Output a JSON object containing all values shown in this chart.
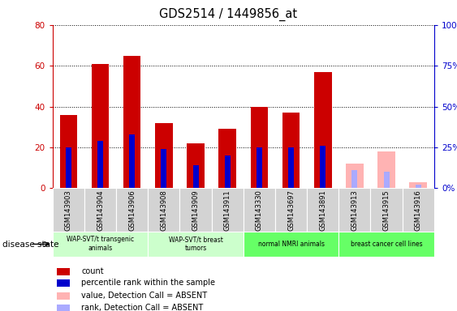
{
  "title": "GDS2514 / 1449856_at",
  "samples": [
    "GSM143903",
    "GSM143904",
    "GSM143906",
    "GSM143908",
    "GSM143909",
    "GSM143911",
    "GSM143330",
    "GSM143697",
    "GSM143891",
    "GSM143913",
    "GSM143915",
    "GSM143916"
  ],
  "count_values": [
    36,
    61,
    65,
    32,
    22,
    29,
    40,
    37,
    57,
    0,
    0,
    0
  ],
  "rank_values_pct": [
    25,
    29,
    33,
    24,
    14,
    20,
    25,
    25,
    26,
    0,
    0,
    0
  ],
  "absent_count_values": [
    0,
    0,
    0,
    0,
    0,
    0,
    0,
    0,
    0,
    12,
    18,
    3
  ],
  "absent_rank_values_pct": [
    0,
    0,
    0,
    0,
    0,
    0,
    0,
    0,
    0,
    11,
    10,
    2
  ],
  "count_color": "#cc0000",
  "rank_color": "#0000cc",
  "absent_count_color": "#ffb3b3",
  "absent_rank_color": "#aaaaff",
  "groups": [
    {
      "label": "WAP-SVT/t transgenic\nanimals",
      "start": 0,
      "end": 3,
      "color": "#ccffcc"
    },
    {
      "label": "WAP-SVT/t breast\ntumors",
      "start": 3,
      "end": 6,
      "color": "#ccffcc"
    },
    {
      "label": "normal NMRI animals",
      "start": 6,
      "end": 9,
      "color": "#66ff66"
    },
    {
      "label": "breast cancer cell lines",
      "start": 9,
      "end": 12,
      "color": "#66ff66"
    }
  ],
  "ylim_left": [
    0,
    80
  ],
  "ylim_right": [
    0,
    100
  ],
  "yticks_left": [
    0,
    20,
    40,
    60,
    80
  ],
  "yticks_right": [
    0,
    25,
    50,
    75,
    100
  ],
  "ytick_labels_left": [
    "0",
    "20",
    "40",
    "60",
    "80"
  ],
  "ytick_labels_right": [
    "0%",
    "25%",
    "50%",
    "75%",
    "100%"
  ],
  "left_axis_color": "#cc0000",
  "right_axis_color": "#0000cc",
  "bar_width": 0.55,
  "rank_bar_width": 0.18,
  "legend_items": [
    {
      "label": "count",
      "color": "#cc0000"
    },
    {
      "label": "percentile rank within the sample",
      "color": "#0000cc"
    },
    {
      "label": "value, Detection Call = ABSENT",
      "color": "#ffb3b3"
    },
    {
      "label": "rank, Detection Call = ABSENT",
      "color": "#aaaaff"
    }
  ],
  "bg_color": "#ffffff",
  "plot_bg_color": "#ffffff",
  "label_box_color": "#d3d3d3",
  "figure_width": 5.63,
  "figure_height": 3.84,
  "dpi": 100
}
